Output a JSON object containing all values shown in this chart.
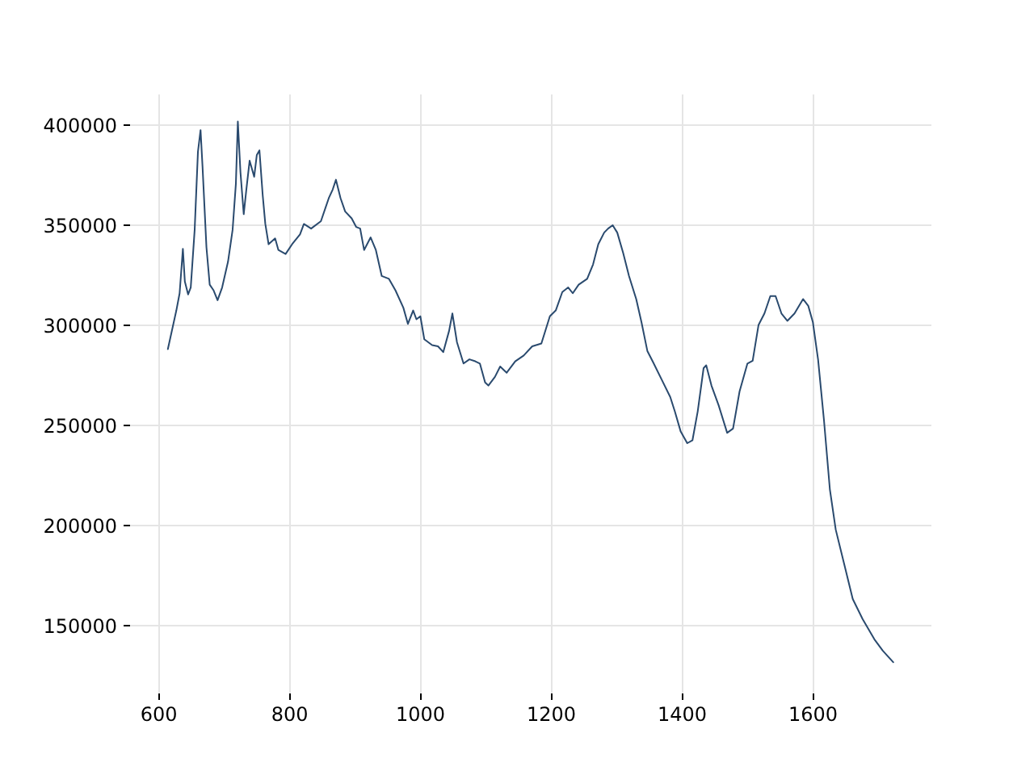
{
  "chart_data": {
    "type": "line",
    "grid": true,
    "marker": "none",
    "line_style": "solid",
    "xlim": [
      556,
      1781
    ],
    "xticks": [
      600,
      800,
      1000,
      1200,
      1400,
      1600
    ],
    "ylim": [
      116400,
      415600
    ],
    "yticks": [
      150000,
      200000,
      250000,
      300000,
      350000,
      400000
    ],
    "series": [
      {
        "color": "#2a4a6e",
        "x": [
          615,
          628,
          633,
          638,
          641,
          646,
          650,
          656,
          661,
          665,
          668,
          674,
          679,
          685,
          691,
          698,
          707,
          714,
          719,
          722,
          726,
          731,
          735,
          740,
          747,
          751,
          755,
          760,
          764,
          769,
          779,
          784,
          795,
          805,
          817,
          823,
          834,
          849,
          861,
          867,
          872,
          879,
          886,
          896,
          903,
          909,
          915,
          925,
          933,
          942,
          953,
          963,
          975,
          982,
          990,
          995,
          1001,
          1007,
          1019,
          1028,
          1036,
          1045,
          1050,
          1057,
          1067,
          1076,
          1085,
          1092,
          1100,
          1105,
          1115,
          1123,
          1133,
          1146,
          1159,
          1172,
          1186,
          1199,
          1208,
          1218,
          1227,
          1234,
          1243,
          1256,
          1265,
          1273,
          1282,
          1288,
          1295,
          1302,
          1311,
          1320,
          1331,
          1339,
          1348,
          1357,
          1370,
          1383,
          1390,
          1399,
          1409,
          1417,
          1425,
          1434,
          1438,
          1446,
          1457,
          1470,
          1479,
          1489,
          1501,
          1509,
          1518,
          1527,
          1536,
          1544,
          1553,
          1562,
          1573,
          1586,
          1594,
          1601,
          1609,
          1618,
          1627,
          1636,
          1649,
          1662,
          1677,
          1695,
          1708,
          1724
        ],
        "values": [
          288000,
          307300,
          315900,
          338100,
          321700,
          315300,
          318800,
          347600,
          386500,
          397400,
          379300,
          338900,
          320200,
          317300,
          312400,
          318800,
          331700,
          347600,
          370600,
          401700,
          376400,
          355400,
          367700,
          382100,
          374100,
          385000,
          387300,
          364900,
          350500,
          340400,
          343300,
          337500,
          335500,
          340400,
          345300,
          350500,
          348200,
          351900,
          363400,
          367700,
          372600,
          363400,
          356800,
          353300,
          349000,
          348200,
          337500,
          343800,
          337500,
          324500,
          323100,
          317300,
          308700,
          300600,
          307300,
          302900,
          304400,
          292900,
          290000,
          289400,
          286500,
          297200,
          305800,
          291400,
          280800,
          282900,
          281900,
          280800,
          271300,
          269800,
          274100,
          279300,
          276200,
          281900,
          284800,
          289400,
          290800,
          304400,
          307300,
          316500,
          318800,
          315900,
          320200,
          323100,
          330300,
          340400,
          346200,
          348200,
          349900,
          346200,
          336100,
          324500,
          313000,
          301500,
          287100,
          281300,
          272700,
          264100,
          256900,
          246800,
          241000,
          242500,
          256900,
          278500,
          279900,
          269800,
          259900,
          246200,
          248300,
          266900,
          280800,
          282200,
          300100,
          305800,
          314500,
          314500,
          305800,
          302100,
          305800,
          313000,
          309600,
          301500,
          282800,
          252500,
          218000,
          197800,
          180500,
          163200,
          153200,
          143100,
          137300,
          131600
        ]
      }
    ]
  }
}
